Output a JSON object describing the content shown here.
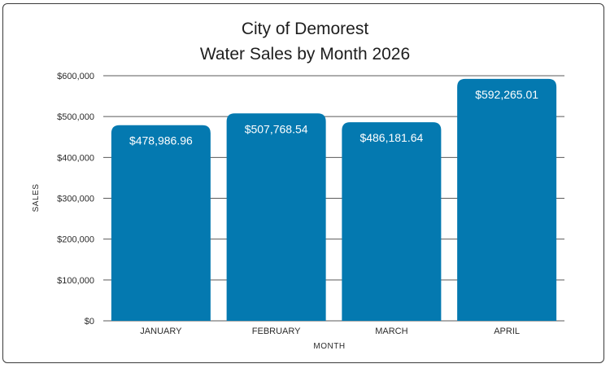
{
  "chart_data": {
    "type": "bar",
    "title_lines": [
      "City of Demorest",
      "Water Sales by Month 2026"
    ],
    "categories": [
      "JANUARY",
      "FEBRUARY",
      "MARCH",
      "APRIL"
    ],
    "values": [
      478986.96,
      507768.54,
      486181.64,
      592265.01
    ],
    "data_labels": [
      "$478,986.96",
      "$507,768.54",
      "$486,181.64",
      "$592,265.01"
    ],
    "xlabel": "MONTH",
    "ylabel": "SALES",
    "ylim": [
      0,
      600000
    ],
    "y_ticks": [
      0,
      100000,
      200000,
      300000,
      400000,
      500000,
      600000
    ],
    "y_tick_labels": [
      "$0",
      "$100,000",
      "$200,000",
      "$300,000",
      "$400,000",
      "$500,000",
      "$600,000"
    ],
    "grid": true,
    "colors": {
      "bar": "#0479b0",
      "grid": "#5a5a5a",
      "text": "#1e1e1e"
    }
  }
}
